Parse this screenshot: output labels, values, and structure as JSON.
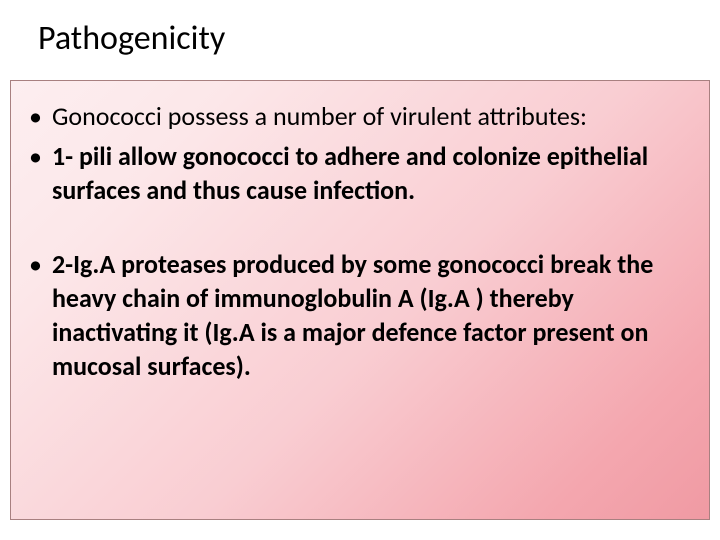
{
  "slide": {
    "title": "Pathogenicity",
    "bullets": [
      {
        "text": "Gonococci possess a number of virulent attributes:",
        "weight": "regular"
      },
      {
        "text": "1- pili allow gonococci to adhere and colonize epithelial surfaces and thus cause infection.",
        "weight": "bold"
      },
      {
        "text": "2-Ig.A proteases produced by some gonococci break the heavy chain of immunoglobulin A (Ig.A ) thereby inactivating it (Ig.A is a major defence factor  present on mucosal surfaces).",
        "weight": "bold"
      }
    ]
  },
  "style": {
    "title_fontsize": 34,
    "body_fontsize": 26,
    "line_height": 34,
    "title_color": "#000000",
    "text_color": "#000000",
    "background_gradient_start": "#fdeef0",
    "background_gradient_end": "#f09aa3",
    "content_border_color": "#a88080",
    "slide_width": 720,
    "slide_height": 540
  }
}
